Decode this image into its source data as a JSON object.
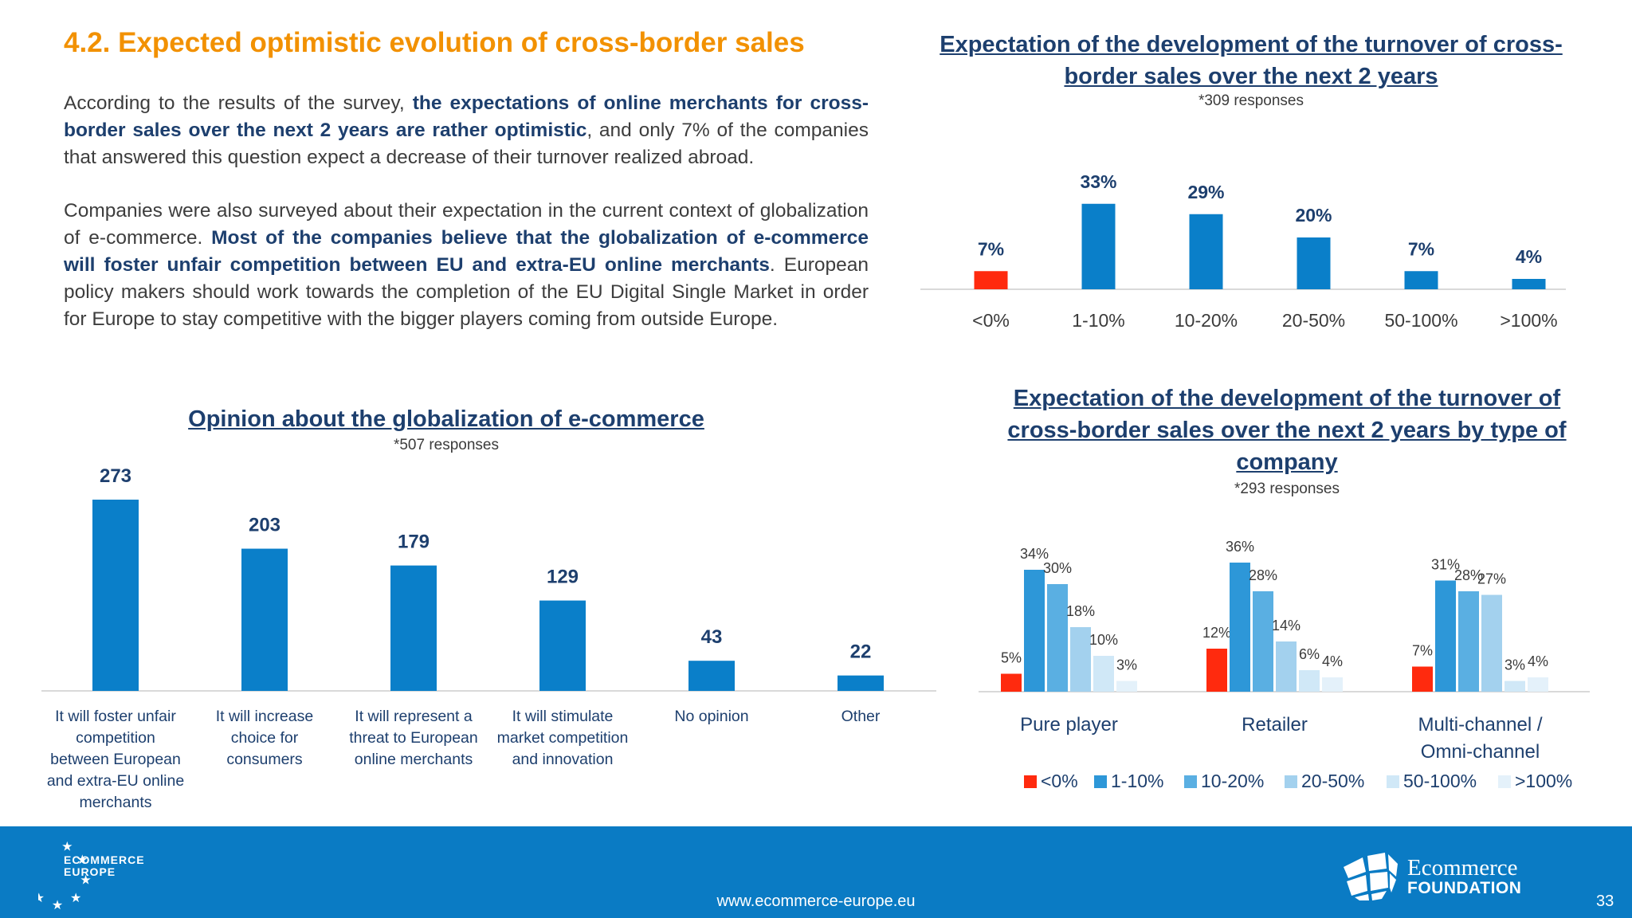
{
  "page": {
    "heading": "4.2. Expected optimistic evolution of cross-border sales",
    "para1": {
      "t1": "According to the results of the survey, ",
      "b1": "the expectations of online merchants for cross-border sales over the next 2 years are rather optimistic",
      "t2": ", and only 7% of the companies that answered this question expect a decrease of their turnover realized abroad."
    },
    "para2": {
      "t1": "Companies were also surveyed about their expectation in the current context of globalization of e-commerce. ",
      "b1": "Most of the companies believe that the globalization of e-commerce will foster unfair competition between EU and extra-EU online merchants",
      "t2": ". European policy makers should work towards the completion of the EU Digital Single Market in order for Europe to stay competitive with the bigger players coming from outside Europe."
    }
  },
  "footer": {
    "url": "www.ecommerce-europe.eu",
    "page_number": "33",
    "left_logo": {
      "line1": "ECOMMERCE",
      "line2": "EUROPE",
      "icon": "eu-stars-icon"
    },
    "right_logo": {
      "line1": "Ecommerce",
      "line2": "FOUNDATION",
      "icon": "globe-icon"
    },
    "color": "#0a7bc4"
  },
  "chart_data": [
    {
      "id": "turnover",
      "type": "bar",
      "title": "Expectation of the development of the turnover of cross-border sales over the next 2 years",
      "subtitle": "*309 responses",
      "categories": [
        "<0%",
        "1-10%",
        "10-20%",
        "20-50%",
        "50-100%",
        ">100%"
      ],
      "values": [
        7,
        33,
        29,
        20,
        7,
        4
      ],
      "labels": [
        "7%",
        "33%",
        "29%",
        "20%",
        "7%",
        "4%"
      ],
      "colors": [
        "#ff2a0e",
        "#0a7fc9",
        "#0a7fc9",
        "#0a7fc9",
        "#0a7fc9",
        "#0a7fc9"
      ],
      "ylim": [
        0,
        40
      ]
    },
    {
      "id": "globalization",
      "type": "bar",
      "title": "Opinion about the globalization of e-commerce",
      "subtitle": "*507 responses",
      "categories": [
        "It will foster unfair competition between European and extra-EU online merchants",
        "It will increase choice for consumers",
        "It will represent a threat to European online merchants",
        "It will stimulate market competition and innovation",
        "No opinion",
        "Other"
      ],
      "category_lines": [
        [
          "It will foster unfair",
          "competition",
          "between European",
          "and extra-EU online",
          "merchants"
        ],
        [
          "It will increase",
          "choice for",
          "consumers"
        ],
        [
          "It will represent a",
          "threat to European",
          "online merchants"
        ],
        [
          "It will stimulate",
          "market competition",
          "and innovation"
        ],
        [
          "No opinion"
        ],
        [
          "Other"
        ]
      ],
      "values": [
        273,
        203,
        179,
        129,
        43,
        22
      ],
      "color": "#0a7fc9",
      "ylim": [
        0,
        280
      ]
    },
    {
      "id": "by_type",
      "type": "bar",
      "title": "Expectation of the development of the turnover of cross-border sales over the next 2 years by type of company",
      "subtitle": "*293 responses",
      "categories": [
        "Pure player",
        "Retailer",
        "Multi-channel / Omni-channel"
      ],
      "category_lines": [
        [
          "Pure player"
        ],
        [
          "Retailer"
        ],
        [
          "Multi-channel /",
          "Omni-channel"
        ]
      ],
      "series": [
        {
          "name": "<0%",
          "values": [
            5,
            12,
            7
          ],
          "color": "#ff2a0e"
        },
        {
          "name": "1-10%",
          "values": [
            34,
            36,
            31
          ],
          "color": "#2d97d8"
        },
        {
          "name": "10-20%",
          "values": [
            30,
            28,
            28
          ],
          "color": "#5aafe2"
        },
        {
          "name": "20-50%",
          "values": [
            18,
            14,
            27
          ],
          "color": "#a3d1ee"
        },
        {
          "name": "50-100%",
          "values": [
            10,
            6,
            3
          ],
          "color": "#d0e8f7"
        },
        {
          "name": ">100%",
          "values": [
            3,
            4,
            4
          ],
          "color": "#e4f1fa"
        }
      ],
      "legend_position": "bottom",
      "ylim": [
        0,
        40
      ]
    }
  ]
}
